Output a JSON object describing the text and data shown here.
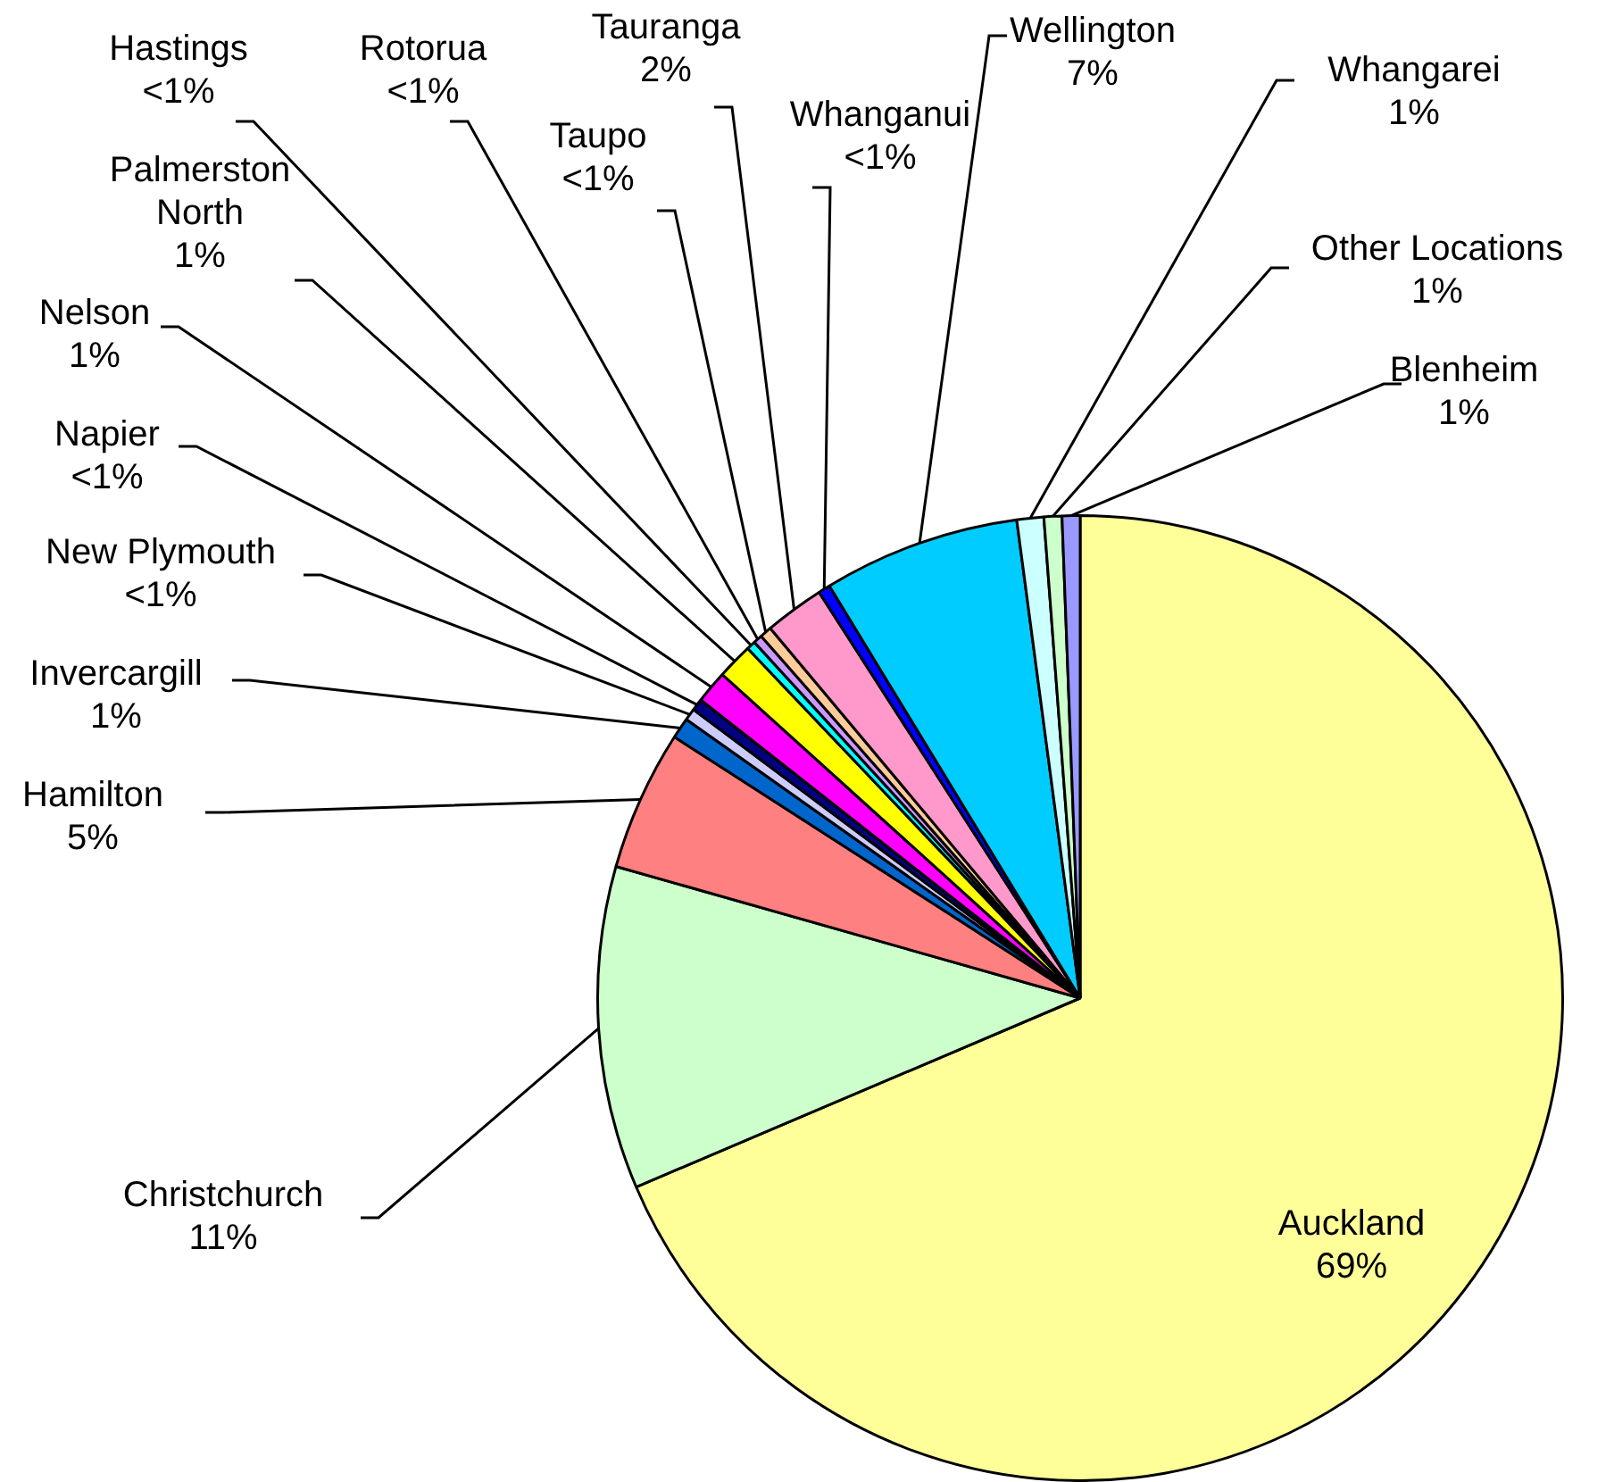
{
  "chart_data": {
    "type": "pie",
    "categories": [
      "Auckland",
      "Christchurch",
      "Hamilton",
      "Invercargill",
      "New Plymouth",
      "Napier",
      "Nelson",
      "Palmerston North",
      "Hastings",
      "Rotorua",
      "Taupo",
      "Tauranga",
      "Whanganui",
      "Wellington",
      "Whangarei",
      "Other Locations",
      "Blenheim"
    ],
    "values": [
      68.6,
      10.8,
      4.7,
      0.7,
      0.4,
      0.4,
      1.1,
      1.2,
      0.3,
      0.3,
      0.4,
      2.0,
      0.4,
      6.6,
      0.9,
      0.6,
      0.6
    ],
    "value_labels": [
      "69%",
      "11%",
      "5%",
      "1%",
      "<1%",
      "<1%",
      "1%",
      "1%",
      "<1%",
      "<1%",
      "<1%",
      "2%",
      "<1%",
      "7%",
      "1%",
      "1%",
      "1%"
    ],
    "colors": [
      "#ffff99",
      "#ccffcc",
      "#ff8080",
      "#0066cc",
      "#ccccff",
      "#000080",
      "#ff00ff",
      "#ffff00",
      "#00ffff",
      "#cc99ff",
      "#ffcc99",
      "#ff99cc",
      "#0000ff",
      "#00ccff",
      "#ccffff",
      "#ccffcc",
      "#9999ff"
    ],
    "legend": false
  }
}
